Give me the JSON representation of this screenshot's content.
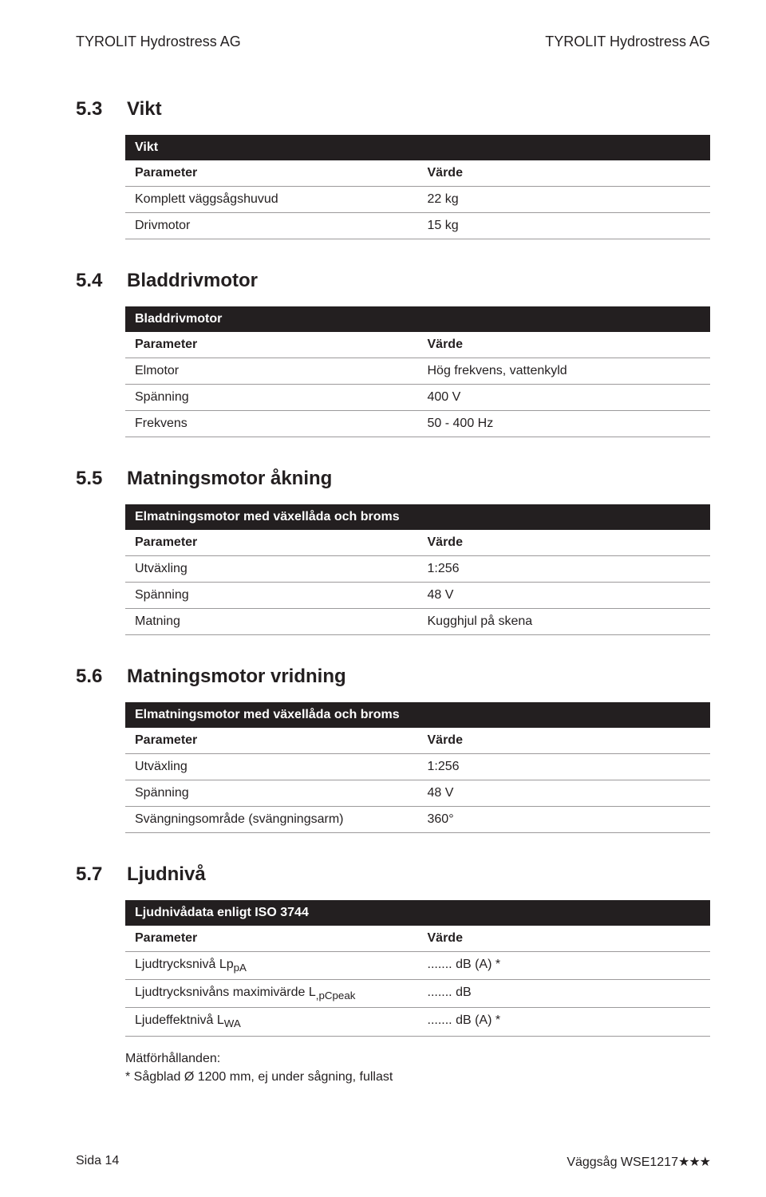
{
  "header": {
    "left": "TYROLIT Hydrostress AG",
    "right": "TYROLIT Hydrostress AG"
  },
  "s53": {
    "num": "5.3",
    "title": "Vikt",
    "tableTitle": "Vikt",
    "col1": "Parameter",
    "col2": "Värde",
    "rows": [
      {
        "p": "Komplett väggsågshuvud",
        "v": "22 kg"
      },
      {
        "p": "Drivmotor",
        "v": "15 kg"
      }
    ]
  },
  "s54": {
    "num": "5.4",
    "title": "Bladdrivmotor",
    "tableTitle": "Bladdrivmotor",
    "col1": "Parameter",
    "col2": "Värde",
    "rows": [
      {
        "p": "Elmotor",
        "v": "Hög frekvens, vattenkyld"
      },
      {
        "p": "Spänning",
        "v": "400 V"
      },
      {
        "p": "Frekvens",
        "v": "50 - 400 Hz"
      }
    ]
  },
  "s55": {
    "num": "5.5",
    "title": "Matningsmotor åkning",
    "tableTitle": "Elmatningsmotor med växellåda och broms",
    "col1": "Parameter",
    "col2": "Värde",
    "rows": [
      {
        "p": "Utväxling",
        "v": "1:256"
      },
      {
        "p": "Spänning",
        "v": "48 V"
      },
      {
        "p": "Matning",
        "v": "Kugghjul på skena"
      }
    ]
  },
  "s56": {
    "num": "5.6",
    "title": "Matningsmotor vridning",
    "tableTitle": "Elmatningsmotor med växellåda och broms",
    "col1": "Parameter",
    "col2": "Värde",
    "rows": [
      {
        "p": "Utväxling",
        "v": "1:256"
      },
      {
        "p": "Spänning",
        "v": "48 V"
      },
      {
        "p": "Svängningsområde (svängningsarm)",
        "v": "360°"
      }
    ]
  },
  "s57": {
    "num": "5.7",
    "title": "Ljudnivå",
    "tableTitle": "Ljudnivådata enligt ISO 3744",
    "col1": "Parameter",
    "col2": "Värde",
    "rows": [
      {
        "p": "Ljudtrycksnivå Lp",
        "sub": "pA",
        "v": "....... dB (A) *"
      },
      {
        "p": "Ljudtrycksnivåns maximivärde L",
        "sub": ",pCpeak",
        "v": "....... dB"
      },
      {
        "p": "Ljudeffektnivå L",
        "sub": "WA",
        "v": "....... dB (A) *"
      }
    ],
    "footnote1": "Mätförhållanden:",
    "footnote2": "* Sågblad Ø 1200 mm, ej under sågning, fullast"
  },
  "footer": {
    "left": "Sida 14",
    "rightProduct": "Väggsåg WSE1217",
    "stars": "★★★"
  }
}
